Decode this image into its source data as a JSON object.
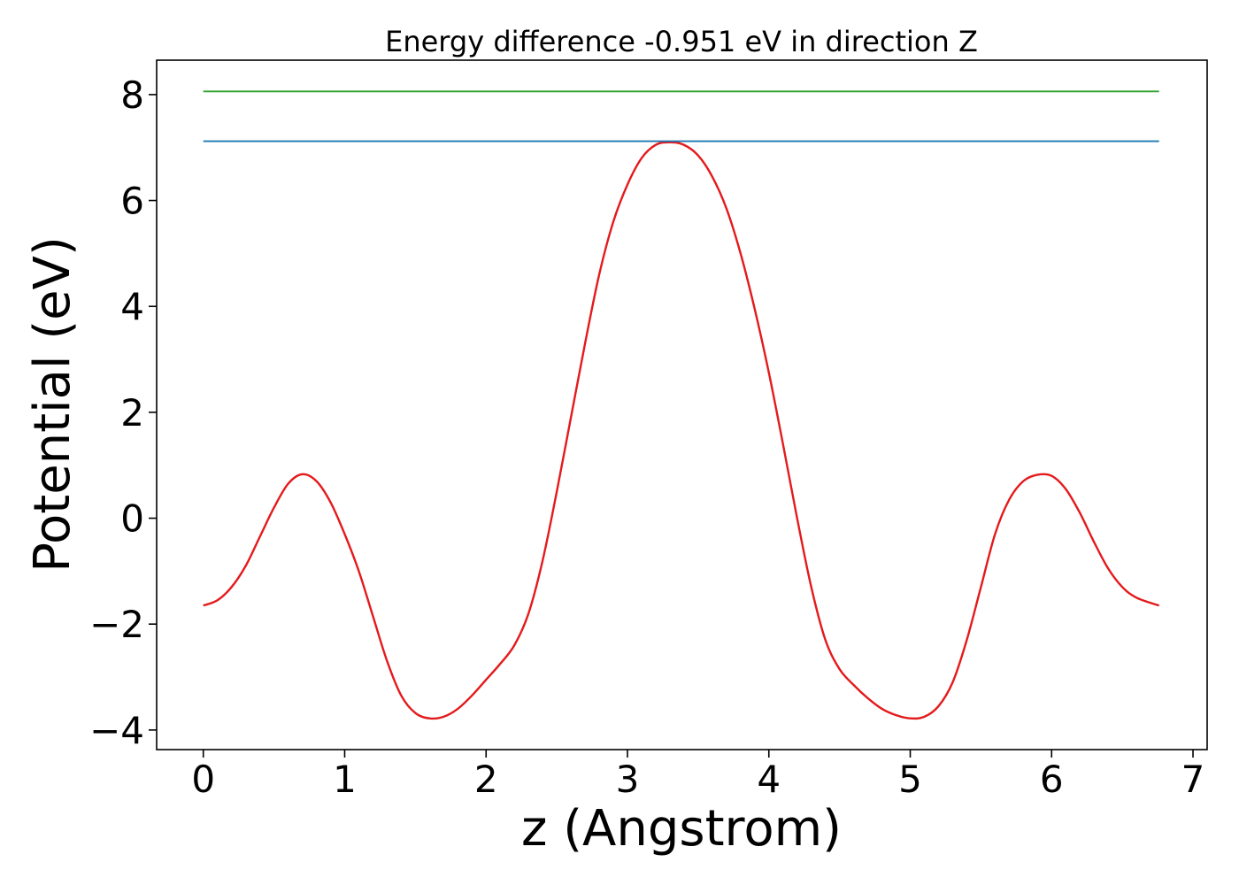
{
  "chart_data": {
    "type": "line",
    "title": "Energy difference -0.951 eV in direction Z",
    "xlabel": "z (Angstrom)",
    "ylabel": "Potential (eV)",
    "xlim": [
      -0.33,
      7.1
    ],
    "ylim": [
      -4.37,
      8.65
    ],
    "xticks": [
      0,
      1,
      2,
      3,
      4,
      5,
      6,
      7
    ],
    "xtick_labels": [
      "0",
      "1",
      "2",
      "3",
      "4",
      "5",
      "6",
      "7"
    ],
    "yticks": [
      -4,
      -2,
      0,
      2,
      4,
      6,
      8
    ],
    "ytick_labels": [
      "−4",
      "−2",
      "0",
      "2",
      "4",
      "6",
      "8"
    ],
    "grid": false,
    "legend": "none",
    "series": [
      {
        "color": "#e41a1c",
        "x": [
          0.0,
          0.1,
          0.2,
          0.3,
          0.4,
          0.5,
          0.6,
          0.7,
          0.8,
          0.9,
          1.0,
          1.1,
          1.2,
          1.3,
          1.4,
          1.5,
          1.6,
          1.7,
          1.8,
          1.9,
          2.0,
          2.1,
          2.2,
          2.3,
          2.4,
          2.5,
          2.6,
          2.7,
          2.8,
          2.9,
          3.0,
          3.1,
          3.2,
          3.3,
          3.4,
          3.5,
          3.6,
          3.7,
          3.8,
          3.9,
          4.0,
          4.1,
          4.2,
          4.3,
          4.4,
          4.5,
          4.6,
          4.7,
          4.8,
          4.9,
          5.0,
          5.1,
          5.2,
          5.3,
          5.4,
          5.5,
          5.6,
          5.7,
          5.8,
          5.9,
          6.0,
          6.1,
          6.2,
          6.3,
          6.4,
          6.5,
          6.6,
          6.76
        ],
        "y": [
          -1.65,
          -1.55,
          -1.3,
          -0.9,
          -0.35,
          0.2,
          0.65,
          0.83,
          0.7,
          0.3,
          -0.3,
          -1.0,
          -1.85,
          -2.7,
          -3.35,
          -3.68,
          -3.78,
          -3.75,
          -3.6,
          -3.35,
          -3.05,
          -2.75,
          -2.4,
          -1.8,
          -0.8,
          0.5,
          1.9,
          3.3,
          4.6,
          5.6,
          6.3,
          6.8,
          7.05,
          7.1,
          7.05,
          6.85,
          6.45,
          5.85,
          5.0,
          3.95,
          2.75,
          1.4,
          0.0,
          -1.3,
          -2.3,
          -2.85,
          -3.15,
          -3.4,
          -3.6,
          -3.72,
          -3.78,
          -3.75,
          -3.55,
          -3.1,
          -2.3,
          -1.3,
          -0.3,
          0.35,
          0.7,
          0.82,
          0.8,
          0.55,
          0.1,
          -0.45,
          -0.95,
          -1.3,
          -1.5,
          -1.65
        ]
      },
      {
        "color": "#1f77b4",
        "x": [
          0.0,
          6.76
        ],
        "y": [
          7.12,
          7.12
        ]
      },
      {
        "color": "#2ca02c",
        "x": [
          0.0,
          6.76
        ],
        "y": [
          8.06,
          8.06
        ]
      }
    ]
  }
}
